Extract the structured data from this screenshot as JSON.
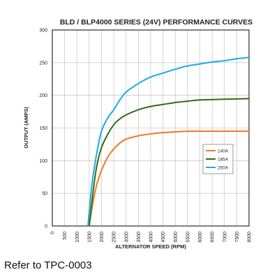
{
  "chart_data": {
    "type": "line",
    "title": "BLD / BLP4000 SERIES (24V) PERFORMANCE CURVES",
    "xlabel": "ALTERNATOR SPEED (RPM)",
    "ylabel": "OUTPUT (AMPS)",
    "xlim": [
      0,
      8000
    ],
    "ylim": [
      0,
      300
    ],
    "xticks": [
      "0",
      "500",
      "1000",
      "1500",
      "2000",
      "2500",
      "3000",
      "3500",
      "4000",
      "4500",
      "5000",
      "5500",
      "6000",
      "6500",
      "7000",
      "7500",
      "8000"
    ],
    "yticks": [
      "0",
      "50",
      "100",
      "150",
      "200",
      "250",
      "300"
    ],
    "grid": true,
    "legend_position": "right",
    "series": [
      {
        "name": "140A",
        "color": "#f07820",
        "points": [
          [
            1500,
            0
          ],
          [
            1650,
            35
          ],
          [
            1800,
            62
          ],
          [
            2000,
            85
          ],
          [
            2250,
            105
          ],
          [
            2500,
            118
          ],
          [
            2750,
            127
          ],
          [
            3000,
            133
          ],
          [
            3500,
            138
          ],
          [
            4000,
            141
          ],
          [
            4500,
            143
          ],
          [
            5000,
            144
          ],
          [
            5500,
            145
          ],
          [
            6000,
            145
          ],
          [
            7000,
            145
          ],
          [
            8000,
            145
          ]
        ]
      },
      {
        "name": "185A",
        "color": "#2e6b14",
        "points": [
          [
            1500,
            0
          ],
          [
            1650,
            50
          ],
          [
            1800,
            90
          ],
          [
            2000,
            120
          ],
          [
            2250,
            140
          ],
          [
            2500,
            155
          ],
          [
            2750,
            164
          ],
          [
            3000,
            170
          ],
          [
            3500,
            178
          ],
          [
            4000,
            183
          ],
          [
            4500,
            186
          ],
          [
            5000,
            189
          ],
          [
            5500,
            191
          ],
          [
            6000,
            193
          ],
          [
            7000,
            194
          ],
          [
            8000,
            195
          ]
        ]
      },
      {
        "name": "250A",
        "color": "#1ea8e8",
        "points": [
          [
            1450,
            0
          ],
          [
            1600,
            60
          ],
          [
            1800,
            110
          ],
          [
            2000,
            145
          ],
          [
            2250,
            165
          ],
          [
            2500,
            178
          ],
          [
            2750,
            193
          ],
          [
            3000,
            205
          ],
          [
            3500,
            218
          ],
          [
            4000,
            228
          ],
          [
            4500,
            234
          ],
          [
            5000,
            240
          ],
          [
            5500,
            245
          ],
          [
            6000,
            248
          ],
          [
            6500,
            251
          ],
          [
            7000,
            253
          ],
          [
            7500,
            256
          ],
          [
            8000,
            258
          ]
        ]
      }
    ]
  },
  "footnote": "Refer to TPC-0003"
}
